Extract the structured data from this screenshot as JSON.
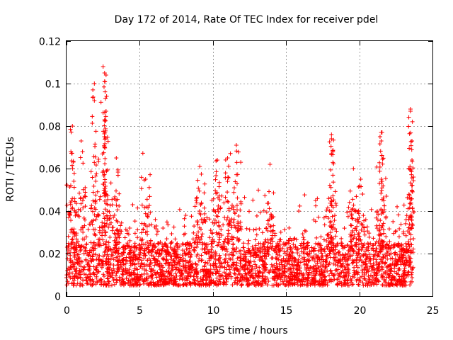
{
  "chart_data": {
    "type": "scatter",
    "title": "Day 172 of 2014, Rate Of TEC Index for receiver pdel",
    "xlabel": "GPS time / hours",
    "ylabel": "ROTI / TECUs",
    "xlim": [
      0,
      25
    ],
    "ylim": [
      0,
      0.12
    ],
    "xticks": [
      0,
      5,
      10,
      15,
      20,
      25
    ],
    "xtick_labels": [
      "0",
      "5",
      "10",
      "15",
      "20",
      "25"
    ],
    "yticks": [
      0,
      0.02,
      0.04,
      0.06,
      0.08,
      0.1,
      0.12
    ],
    "ytick_labels": [
      "0",
      "0.02",
      "0.04",
      "0.06",
      "0.08",
      "0.1",
      "0.12"
    ],
    "grid": true,
    "marker": "+",
    "color": "#ff0000",
    "series": [
      {
        "name": "ROTI",
        "x_range": [
          0,
          23.7
        ],
        "baseline_band": [
          0.005,
          0.025
        ],
        "notable_points": [
          {
            "x": 0.3,
            "y": 0.068
          },
          {
            "x": 0.4,
            "y": 0.08
          },
          {
            "x": 1.0,
            "y": 0.073
          },
          {
            "x": 1.9,
            "y": 0.1
          },
          {
            "x": 1.9,
            "y": 0.092
          },
          {
            "x": 2.5,
            "y": 0.108
          },
          {
            "x": 2.6,
            "y": 0.105
          },
          {
            "x": 2.7,
            "y": 0.104
          },
          {
            "x": 2.6,
            "y": 0.101
          },
          {
            "x": 2.7,
            "y": 0.087
          },
          {
            "x": 2.6,
            "y": 0.083
          },
          {
            "x": 2.6,
            "y": 0.075
          },
          {
            "x": 3.4,
            "y": 0.065
          },
          {
            "x": 5.4,
            "y": 0.055
          },
          {
            "x": 9.1,
            "y": 0.061
          },
          {
            "x": 10.3,
            "y": 0.064
          },
          {
            "x": 11.0,
            "y": 0.065
          },
          {
            "x": 11.6,
            "y": 0.071
          },
          {
            "x": 13.9,
            "y": 0.062
          },
          {
            "x": 18.1,
            "y": 0.076
          },
          {
            "x": 18.1,
            "y": 0.074
          },
          {
            "x": 18.1,
            "y": 0.067
          },
          {
            "x": 19.6,
            "y": 0.06
          },
          {
            "x": 20.1,
            "y": 0.055
          },
          {
            "x": 21.5,
            "y": 0.077
          },
          {
            "x": 21.5,
            "y": 0.073
          },
          {
            "x": 21.5,
            "y": 0.055
          },
          {
            "x": 23.5,
            "y": 0.088
          },
          {
            "x": 23.5,
            "y": 0.087
          },
          {
            "x": 23.6,
            "y": 0.073
          },
          {
            "x": 23.6,
            "y": 0.064
          }
        ]
      }
    ]
  }
}
